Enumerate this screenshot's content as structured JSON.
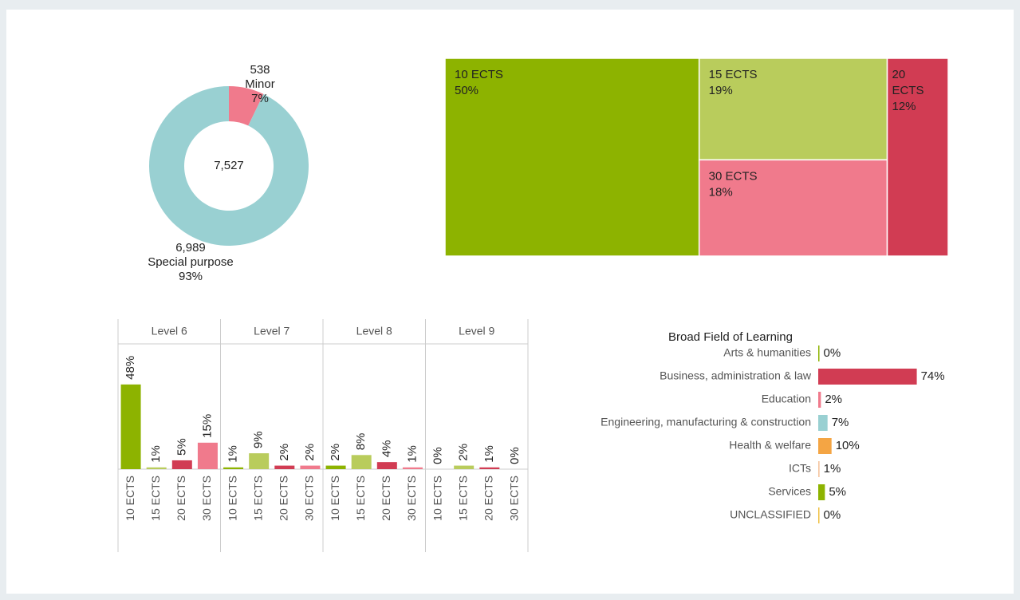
{
  "chart_data": [
    {
      "type": "donut",
      "categories": [
        "Minor",
        "Special purpose"
      ],
      "values": [
        538,
        6989
      ],
      "value_labels": [
        "538",
        "6,989"
      ],
      "percent_labels": [
        "7%",
        "93%"
      ],
      "colors": [
        "#f07a8c",
        "#99d0d2"
      ],
      "center_label": "7,527"
    },
    {
      "type": "treemap",
      "categories": [
        "10 ECTS",
        "15 ECTS",
        "30 ECTS",
        "20 ECTS"
      ],
      "values": [
        50,
        19,
        18,
        12
      ],
      "value_labels": [
        "50%",
        "19%",
        "18%",
        "12%"
      ],
      "colors": [
        "#8db300",
        "#b9cc5c",
        "#f07a8c",
        "#d13c53"
      ]
    },
    {
      "type": "faceted_bar",
      "categories": [
        "10 ECTS",
        "15 ECTS",
        "20 ECTS",
        "30 ECTS"
      ],
      "colors": [
        "#8db300",
        "#b9cc5c",
        "#d13c53",
        "#f07a8c"
      ],
      "ylim": [
        0,
        71
      ],
      "facets": [
        {
          "name": "Level 6",
          "values": [
            48,
            1,
            5,
            15
          ],
          "value_labels": [
            "48%",
            "1%",
            "5%",
            "15%"
          ]
        },
        {
          "name": "Level 7",
          "values": [
            1,
            9,
            2,
            2
          ],
          "value_labels": [
            "1%",
            "9%",
            "2%",
            "2%"
          ]
        },
        {
          "name": "Level 8",
          "values": [
            2,
            8,
            4,
            1
          ],
          "value_labels": [
            "2%",
            "8%",
            "4%",
            "1%"
          ]
        },
        {
          "name": "Level 9",
          "values": [
            0,
            2,
            1,
            0
          ],
          "value_labels": [
            "0%",
            "2%",
            "1%",
            "0%"
          ]
        }
      ]
    },
    {
      "type": "hbar",
      "title": "Broad Field of Learning",
      "categories": [
        "Arts & humanities",
        "Business, administration & law",
        "Education",
        "Engineering, manufacturing & construction",
        "Health & welfare",
        "ICTs",
        "Services",
        "UNCLASSIFIED"
      ],
      "values": [
        0,
        74,
        2,
        7,
        10,
        1,
        5,
        0
      ],
      "value_labels": [
        "0%",
        "74%",
        "2%",
        "7%",
        "10%",
        "1%",
        "5%",
        "0%"
      ],
      "colors": [
        "#8db300",
        "#d13c53",
        "#f07a8c",
        "#99d0d2",
        "#f4a544",
        "#f5c6a0",
        "#8db300",
        "#f0c040"
      ],
      "xlim": [
        0,
        100
      ]
    }
  ]
}
